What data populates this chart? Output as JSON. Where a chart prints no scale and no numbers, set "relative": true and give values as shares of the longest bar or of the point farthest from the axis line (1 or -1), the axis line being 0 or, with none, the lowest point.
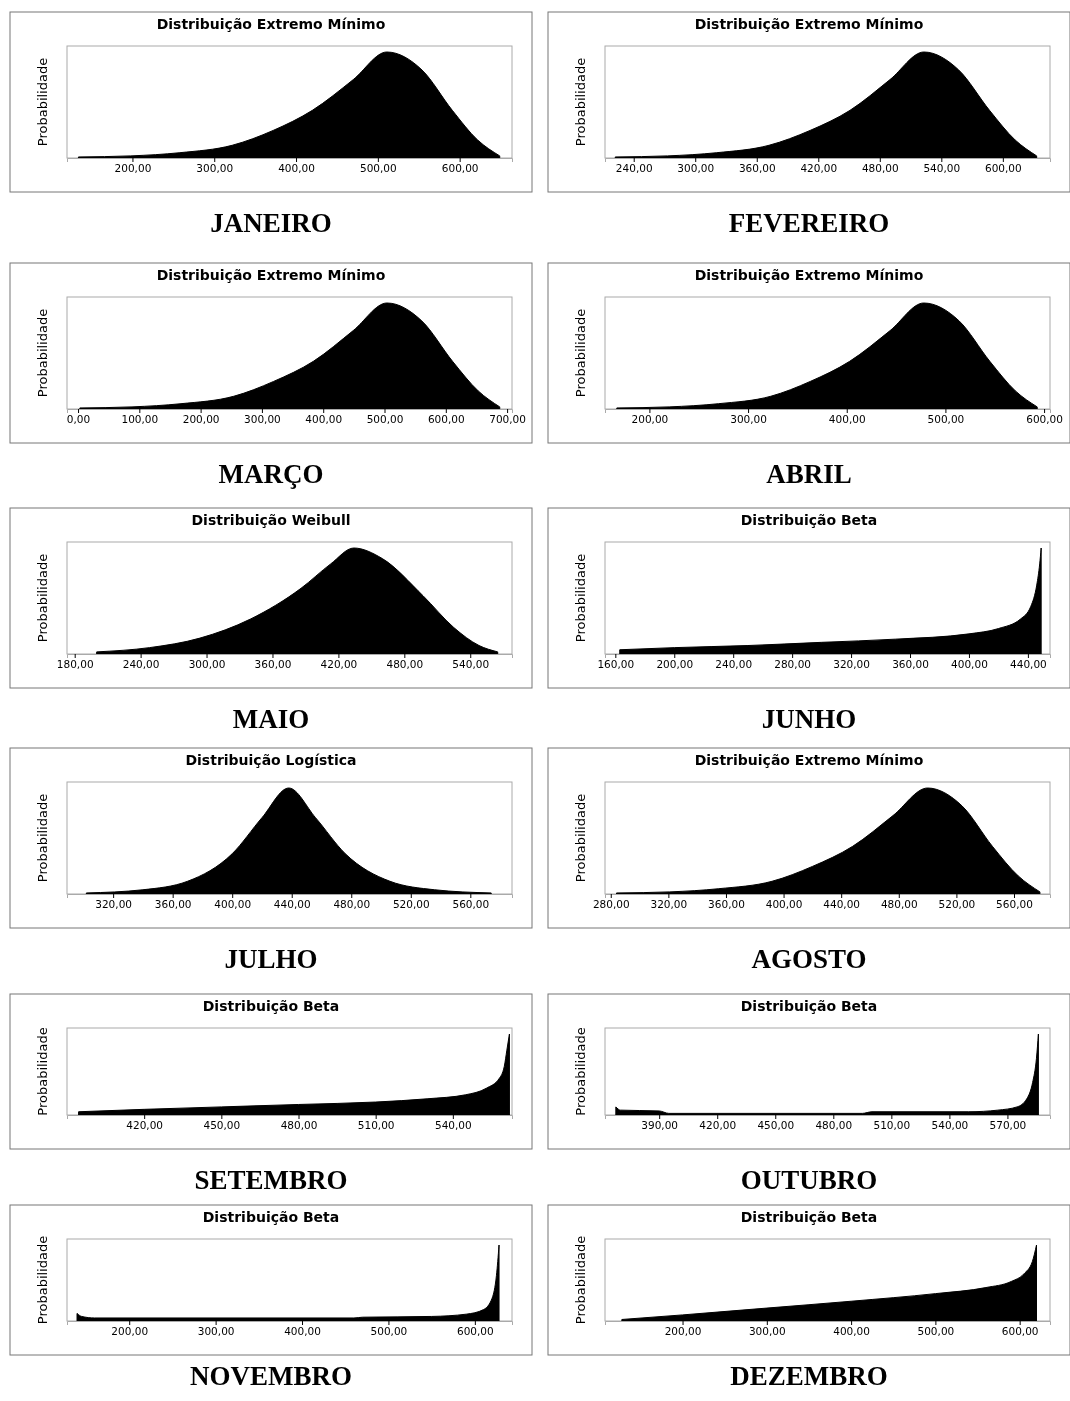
{
  "chart_data": [
    {
      "type": "area",
      "title": "Distribuição Extremo Mínimo",
      "ylabel": "Probabilidade",
      "annotations": [
        "JANEIRO"
      ],
      "relative": true,
      "color": "#000000",
      "xlim": [
        120,
        664
      ],
      "xticks": [
        {
          "value": 200,
          "label": "200,00"
        },
        {
          "value": 300,
          "label": "300,00"
        },
        {
          "value": 400,
          "label": "400,00"
        },
        {
          "value": 500,
          "label": "500,00"
        },
        {
          "value": 600,
          "label": "600,00"
        }
      ],
      "x": [
        134,
        198,
        258,
        322,
        372,
        420,
        470,
        511,
        554,
        591,
        622,
        649
      ],
      "values": [
        0.01,
        0.02,
        0.05,
        0.12,
        0.26,
        0.45,
        0.74,
        1,
        0.83,
        0.45,
        0.17,
        0.02
      ]
    },
    {
      "type": "area",
      "title": "Distribuição Extremo Mínimo",
      "ylabel": "Probabilidade",
      "annotations": [
        "FEVEREIRO"
      ],
      "relative": true,
      "color": "#000000",
      "xlim": [
        212,
        646
      ],
      "xticks": [
        {
          "value": 240,
          "label": "240,00"
        },
        {
          "value": 300,
          "label": "300,00"
        },
        {
          "value": 360,
          "label": "360,00"
        },
        {
          "value": 420,
          "label": "420,00"
        },
        {
          "value": 480,
          "label": "480,00"
        },
        {
          "value": 540,
          "label": "540,00"
        },
        {
          "value": 600,
          "label": "600,00"
        }
      ],
      "x": [
        222,
        273,
        321,
        372,
        412,
        451,
        490,
        523,
        557,
        587,
        612,
        633
      ],
      "values": [
        0.01,
        0.02,
        0.05,
        0.12,
        0.26,
        0.45,
        0.74,
        1,
        0.83,
        0.45,
        0.17,
        0.02
      ]
    },
    {
      "type": "area",
      "title": "Distribuição Extremo Mínimo",
      "ylabel": "Probabilidade",
      "annotations": [
        "MARÇO"
      ],
      "relative": true,
      "color": "#000000",
      "xlim": [
        -18,
        708
      ],
      "xticks": [
        {
          "value": 0,
          "label": "0,00"
        },
        {
          "value": 100,
          "label": "100,00"
        },
        {
          "value": 200,
          "label": "200,00"
        },
        {
          "value": 300,
          "label": "300,00"
        },
        {
          "value": 400,
          "label": "400,00"
        },
        {
          "value": 500,
          "label": "500,00"
        },
        {
          "value": 600,
          "label": "600,00"
        },
        {
          "value": 700,
          "label": "700,00"
        }
      ],
      "x": [
        3,
        88,
        168,
        254,
        319,
        384,
        449,
        504,
        561,
        611,
        653,
        688
      ],
      "values": [
        0.01,
        0.02,
        0.05,
        0.12,
        0.26,
        0.45,
        0.74,
        1,
        0.83,
        0.45,
        0.17,
        0.02
      ]
    },
    {
      "type": "area",
      "title": "Distribuição Extremo Mínimo",
      "ylabel": "Probabilidade",
      "annotations": [
        "ABRIL"
      ],
      "relative": true,
      "color": "#000000",
      "xlim": [
        155,
        606
      ],
      "xticks": [
        {
          "value": 200,
          "label": "200,00"
        },
        {
          "value": 300,
          "label": "300,00"
        },
        {
          "value": 400,
          "label": "400,00"
        },
        {
          "value": 500,
          "label": "500,00"
        },
        {
          "value": 600,
          "label": "600,00"
        }
      ],
      "x": [
        167,
        220,
        270,
        323,
        363,
        403,
        444,
        478,
        514,
        545,
        571,
        593
      ],
      "values": [
        0.01,
        0.02,
        0.05,
        0.12,
        0.26,
        0.45,
        0.74,
        1,
        0.83,
        0.45,
        0.17,
        0.02
      ]
    },
    {
      "type": "area",
      "title": "Distribuição Weibull",
      "ylabel": "Probabilidade",
      "annotations": [
        "MAIO"
      ],
      "relative": true,
      "color": "#000000",
      "xlim": [
        173,
        578
      ],
      "xticks": [
        {
          "value": 180,
          "label": "180,00"
        },
        {
          "value": 240,
          "label": "240,00"
        },
        {
          "value": 300,
          "label": "300,00"
        },
        {
          "value": 360,
          "label": "360,00"
        },
        {
          "value": 420,
          "label": "420,00"
        },
        {
          "value": 480,
          "label": "480,00"
        },
        {
          "value": 540,
          "label": "540,00"
        }
      ],
      "x": [
        200,
        248,
        294,
        340,
        386,
        413,
        434,
        460,
        497,
        525,
        548,
        565
      ],
      "values": [
        0.02,
        0.06,
        0.15,
        0.33,
        0.62,
        0.85,
        1,
        0.9,
        0.55,
        0.25,
        0.08,
        0.02
      ]
    },
    {
      "type": "area",
      "title": "Distribuição Beta",
      "ylabel": "Probabilidade",
      "annotations": [
        "JUNHO"
      ],
      "relative": true,
      "color": "#000000",
      "xlim": [
        153,
        455
      ],
      "xticks": [
        {
          "value": 160,
          "label": "160,00"
        },
        {
          "value": 200,
          "label": "200,00"
        },
        {
          "value": 240,
          "label": "240,00"
        },
        {
          "value": 280,
          "label": "280,00"
        },
        {
          "value": 320,
          "label": "320,00"
        },
        {
          "value": 360,
          "label": "360,00"
        },
        {
          "value": 400,
          "label": "400,00"
        },
        {
          "value": 440,
          "label": "440,00"
        }
      ],
      "x": [
        163,
        200,
        250,
        300,
        350,
        400,
        420,
        435,
        442,
        446,
        448,
        449
      ],
      "values": [
        0.04,
        0.06,
        0.08,
        0.11,
        0.14,
        0.19,
        0.24,
        0.33,
        0.45,
        0.65,
        0.85,
        1
      ]
    },
    {
      "type": "area",
      "title": "Distribuição Logística",
      "ylabel": "Probabilidade",
      "annotations": [
        "JULHO"
      ],
      "relative": true,
      "color": "#000000",
      "xlim": [
        289,
        588
      ],
      "xticks": [
        {
          "value": 320,
          "label": "320,00"
        },
        {
          "value": 360,
          "label": "360,00"
        },
        {
          "value": 400,
          "label": "400,00"
        },
        {
          "value": 440,
          "label": "440,00"
        },
        {
          "value": 480,
          "label": "480,00"
        },
        {
          "value": 520,
          "label": "520,00"
        },
        {
          "value": 560,
          "label": "560,00"
        }
      ],
      "x": [
        302,
        340,
        370,
        400,
        420,
        438,
        456,
        476,
        506,
        536,
        574
      ],
      "values": [
        0.01,
        0.04,
        0.12,
        0.38,
        0.72,
        1,
        0.72,
        0.38,
        0.12,
        0.04,
        0.01
      ]
    },
    {
      "type": "area",
      "title": "Distribuição Extremo Mínimo",
      "ylabel": "Probabilidade",
      "annotations": [
        "AGOSTO"
      ],
      "relative": true,
      "color": "#000000",
      "xlim": [
        276,
        585
      ],
      "xticks": [
        {
          "value": 280,
          "label": "280,00"
        },
        {
          "value": 320,
          "label": "320,00"
        },
        {
          "value": 360,
          "label": "360,00"
        },
        {
          "value": 400,
          "label": "400,00"
        },
        {
          "value": 440,
          "label": "440,00"
        },
        {
          "value": 480,
          "label": "480,00"
        },
        {
          "value": 520,
          "label": "520,00"
        },
        {
          "value": 560,
          "label": "560,00"
        }
      ],
      "x": [
        284,
        321,
        355,
        392,
        420,
        448,
        476,
        500,
        524,
        545,
        563,
        578
      ],
      "values": [
        0.01,
        0.02,
        0.05,
        0.12,
        0.26,
        0.45,
        0.74,
        1,
        0.83,
        0.45,
        0.17,
        0.02
      ]
    },
    {
      "type": "area",
      "title": "Distribuição Beta",
      "ylabel": "Probabilidade",
      "annotations": [
        "SETEMBRO"
      ],
      "relative": true,
      "color": "#000000",
      "xlim": [
        390,
        563
      ],
      "xticks": [
        {
          "value": 420,
          "label": "420,00"
        },
        {
          "value": 450,
          "label": "450,00"
        },
        {
          "value": 480,
          "label": "480,00"
        },
        {
          "value": 510,
          "label": "510,00"
        },
        {
          "value": 540,
          "label": "540,00"
        }
      ],
      "x": [
        394.5,
        420,
        450,
        480,
        510,
        530,
        545,
        553,
        558,
        560,
        561,
        562
      ],
      "values": [
        0.04,
        0.07,
        0.1,
        0.13,
        0.16,
        0.2,
        0.25,
        0.33,
        0.45,
        0.6,
        0.8,
        1
      ]
    },
    {
      "type": "area",
      "title": "Distribuição Beta",
      "ylabel": "Probabilidade",
      "annotations": [
        "OUTUBRO"
      ],
      "relative": true,
      "color": "#000000",
      "xlim": [
        362,
        592
      ],
      "xticks": [
        {
          "value": 390,
          "label": "390,00"
        },
        {
          "value": 420,
          "label": "420,00"
        },
        {
          "value": 450,
          "label": "450,00"
        },
        {
          "value": 480,
          "label": "480,00"
        },
        {
          "value": 510,
          "label": "510,00"
        },
        {
          "value": 540,
          "label": "540,00"
        },
        {
          "value": 570,
          "label": "570,00"
        }
      ],
      "x": [
        367.6,
        370,
        390,
        395,
        495,
        500,
        550,
        565,
        575,
        580,
        583,
        585,
        586
      ],
      "values": [
        0.1,
        0.06,
        0.05,
        0.02,
        0.02,
        0.04,
        0.04,
        0.06,
        0.1,
        0.2,
        0.4,
        0.7,
        1
      ]
    },
    {
      "type": "area",
      "title": "Distribuição Beta",
      "ylabel": "Probabilidade",
      "annotations": [
        "NOVEMBRO"
      ],
      "relative": true,
      "color": "#000000",
      "xlim": [
        128,
        643
      ],
      "xticks": [
        {
          "value": 200,
          "label": "200,00"
        },
        {
          "value": 300,
          "label": "300,00"
        },
        {
          "value": 400,
          "label": "400,00"
        },
        {
          "value": 500,
          "label": "500,00"
        },
        {
          "value": 600,
          "label": "600,00"
        }
      ],
      "x": [
        139.6,
        145,
        160,
        460,
        470,
        550,
        590,
        610,
        620,
        625,
        628
      ],
      "values": [
        0.1,
        0.06,
        0.04,
        0.04,
        0.05,
        0.06,
        0.09,
        0.15,
        0.3,
        0.6,
        1
      ]
    },
    {
      "type": "area",
      "title": "Distribuição Beta",
      "ylabel": "Probabilidade",
      "annotations": [
        "DEZEMBRO"
      ],
      "relative": true,
      "color": "#000000",
      "xlim": [
        108,
        636
      ],
      "xticks": [
        {
          "value": 200,
          "label": "200,00"
        },
        {
          "value": 300,
          "label": "300,00"
        },
        {
          "value": 400,
          "label": "400,00"
        },
        {
          "value": 500,
          "label": "500,00"
        },
        {
          "value": 600,
          "label": "600,00"
        }
      ],
      "x": [
        128,
        200,
        300,
        400,
        500,
        560,
        590,
        605,
        615,
        620
      ],
      "values": [
        0.02,
        0.08,
        0.17,
        0.26,
        0.36,
        0.44,
        0.52,
        0.62,
        0.78,
        1
      ]
    }
  ]
}
